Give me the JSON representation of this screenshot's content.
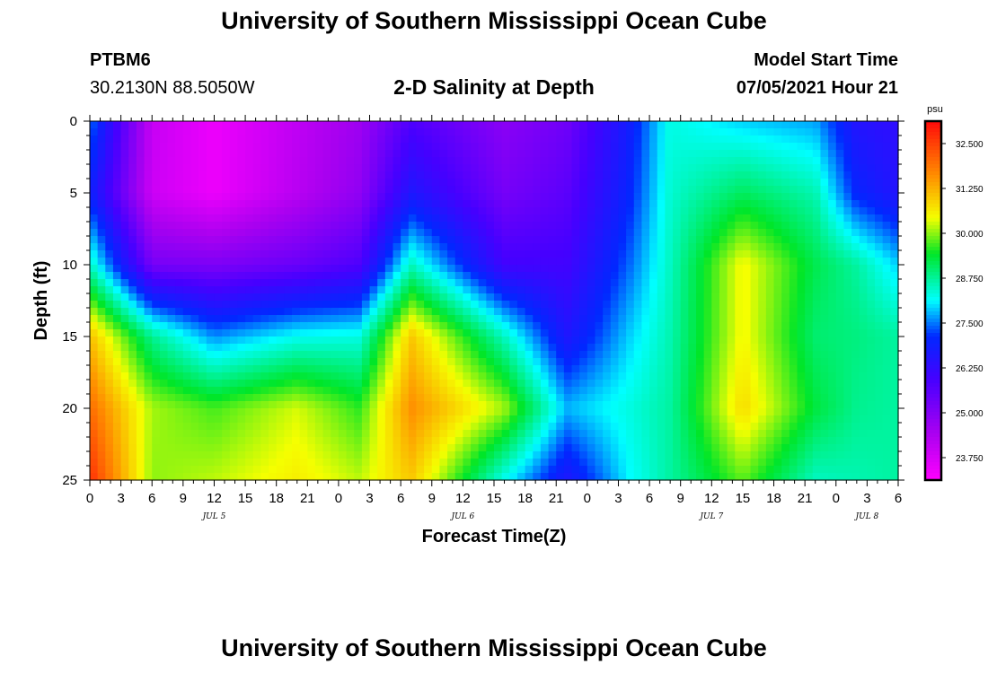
{
  "header": {
    "title": "University of Southern Mississippi Ocean Cube",
    "station": "PTBM6",
    "coords": "30.2130N  88.5050W",
    "subtitle": "2-D Salinity at Depth",
    "model_start_label": "Model Start Time",
    "model_start_value": "07/05/2021 Hour 21"
  },
  "footer": {
    "title": "University of Southern Mississippi Ocean Cube"
  },
  "chart_data": {
    "type": "heatmap",
    "title": "2-D Salinity at Depth",
    "xlabel": "Forecast Time(Z)",
    "ylabel": "Depth (ft)",
    "x_tick_labels": [
      "0",
      "3",
      "6",
      "9",
      "12",
      "15",
      "18",
      "21",
      "0",
      "3",
      "6",
      "9",
      "12",
      "15",
      "18",
      "21",
      "0",
      "3",
      "6",
      "9",
      "12",
      "15",
      "18",
      "21",
      "0",
      "3",
      "6"
    ],
    "x_date_labels": [
      {
        "label": "JUL 5",
        "hour_index": 12
      },
      {
        "label": "JUL 6",
        "hour_index": 36
      },
      {
        "label": "JUL 7",
        "hour_index": 60
      },
      {
        "label": "JUL 8",
        "hour_index": 75
      }
    ],
    "xlim": [
      0,
      78
    ],
    "ylim": [
      0,
      25
    ],
    "y_ticks": [
      0,
      5,
      10,
      15,
      20,
      25
    ],
    "colorbar": {
      "unit": "psu",
      "range": [
        23.125,
        33.125
      ],
      "tick_values": [
        32.5,
        31.25,
        30.0,
        28.75,
        27.5,
        26.25,
        25.0,
        23.75
      ],
      "tick_labels": [
        "32.500",
        "31.250",
        "30.000",
        "28.750",
        "27.500",
        "26.250",
        "25.000",
        "23.750"
      ]
    },
    "depth_levels": [
      0,
      5,
      10,
      15,
      20,
      25
    ],
    "times_hours": [
      0,
      6,
      12,
      20,
      26,
      31,
      40,
      46,
      52,
      56,
      63,
      70,
      74,
      78
    ],
    "salinity_grid": [
      [
        27.5,
        24.0,
        23.4,
        24.1,
        24.6,
        25.8,
        24.9,
        25.3,
        26.8,
        28.3,
        27.9,
        27.7,
        26.5,
        26.3
      ],
      [
        26.9,
        23.9,
        23.4,
        24.2,
        24.8,
        26.6,
        25.2,
        25.6,
        27.0,
        28.4,
        29.1,
        28.6,
        27.0,
        26.5
      ],
      [
        28.5,
        25.2,
        25.1,
        25.4,
        25.8,
        28.5,
        26.0,
        26.0,
        27.4,
        28.5,
        30.5,
        29.2,
        28.7,
        27.9
      ],
      [
        31.1,
        28.8,
        27.6,
        28.2,
        28.3,
        31.0,
        28.5,
        26.6,
        27.9,
        28.6,
        30.5,
        29.0,
        28.9,
        28.7
      ],
      [
        32.0,
        30.1,
        29.7,
        30.3,
        29.6,
        31.6,
        30.1,
        27.8,
        28.3,
        28.7,
        30.8,
        29.3,
        28.8,
        28.7
      ],
      [
        32.7,
        30.0,
        30.2,
        30.6,
        30.2,
        31.0,
        28.2,
        26.6,
        28.1,
        28.7,
        29.8,
        28.5,
        28.6,
        28.7
      ]
    ]
  }
}
